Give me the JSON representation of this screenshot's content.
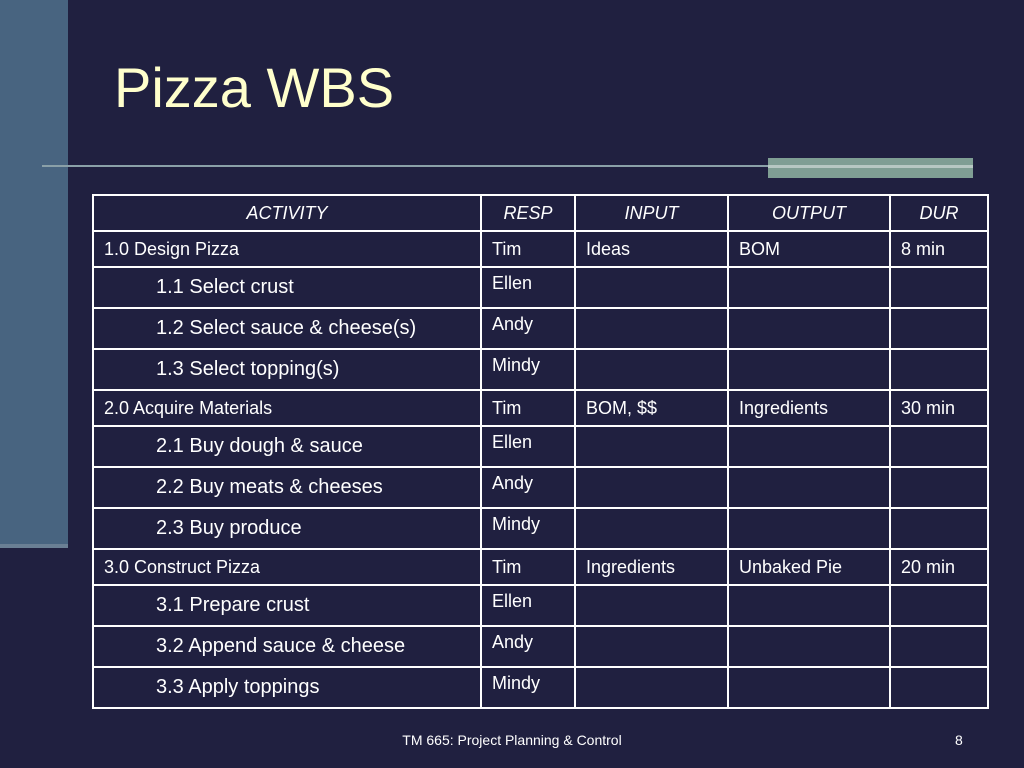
{
  "slide": {
    "title": "Pizza WBS",
    "colors": {
      "background": "#202040",
      "title_text": "#ffffcc",
      "side_bar": "#486480",
      "rule_accent": "#7f9e94",
      "table_border": "#ffffff",
      "table_text": "#ffffff"
    }
  },
  "table": {
    "headers": [
      "ACTIVITY",
      "RESP",
      "INPUT",
      "OUTPUT",
      "DUR"
    ],
    "rows": [
      {
        "activity": "1.0  Design Pizza",
        "resp": "Tim",
        "input": "Ideas",
        "output": "BOM",
        "dur": "8 min"
      },
      {
        "activity": "1.1  Select crust",
        "resp": "Ellen",
        "input": "",
        "output": "",
        "dur": ""
      },
      {
        "activity": "1.2  Select sauce & cheese(s)",
        "resp": "Andy",
        "input": "",
        "output": "",
        "dur": ""
      },
      {
        "activity": "1.3  Select topping(s)",
        "resp": "Mindy",
        "input": "",
        "output": "",
        "dur": ""
      },
      {
        "activity": "2.0  Acquire Materials",
        "resp": "Tim",
        "input": "BOM, $$",
        "output": "Ingredients",
        "dur": "30 min"
      },
      {
        "activity": "2.1  Buy dough & sauce",
        "resp": "Ellen",
        "input": "",
        "output": "",
        "dur": ""
      },
      {
        "activity": "2.2  Buy meats & cheeses",
        "resp": "Andy",
        "input": "",
        "output": "",
        "dur": ""
      },
      {
        "activity": "2.3  Buy produce",
        "resp": "Mindy",
        "input": "",
        "output": "",
        "dur": ""
      },
      {
        "activity": "3.0  Construct Pizza",
        "resp": "Tim",
        "input": "Ingredients",
        "output": "Unbaked Pie",
        "dur": "20 min"
      },
      {
        "activity": "3.1  Prepare crust",
        "resp": "Ellen",
        "input": "",
        "output": "",
        "dur": ""
      },
      {
        "activity": "3.2  Append sauce &  cheese",
        "resp": "Andy",
        "input": "",
        "output": "",
        "dur": ""
      },
      {
        "activity": "3.3  Apply toppings",
        "resp": "Mindy",
        "input": "",
        "output": "",
        "dur": ""
      }
    ]
  },
  "footer": {
    "course": "TM 665:  Project Planning & Control",
    "page_number": "8"
  }
}
